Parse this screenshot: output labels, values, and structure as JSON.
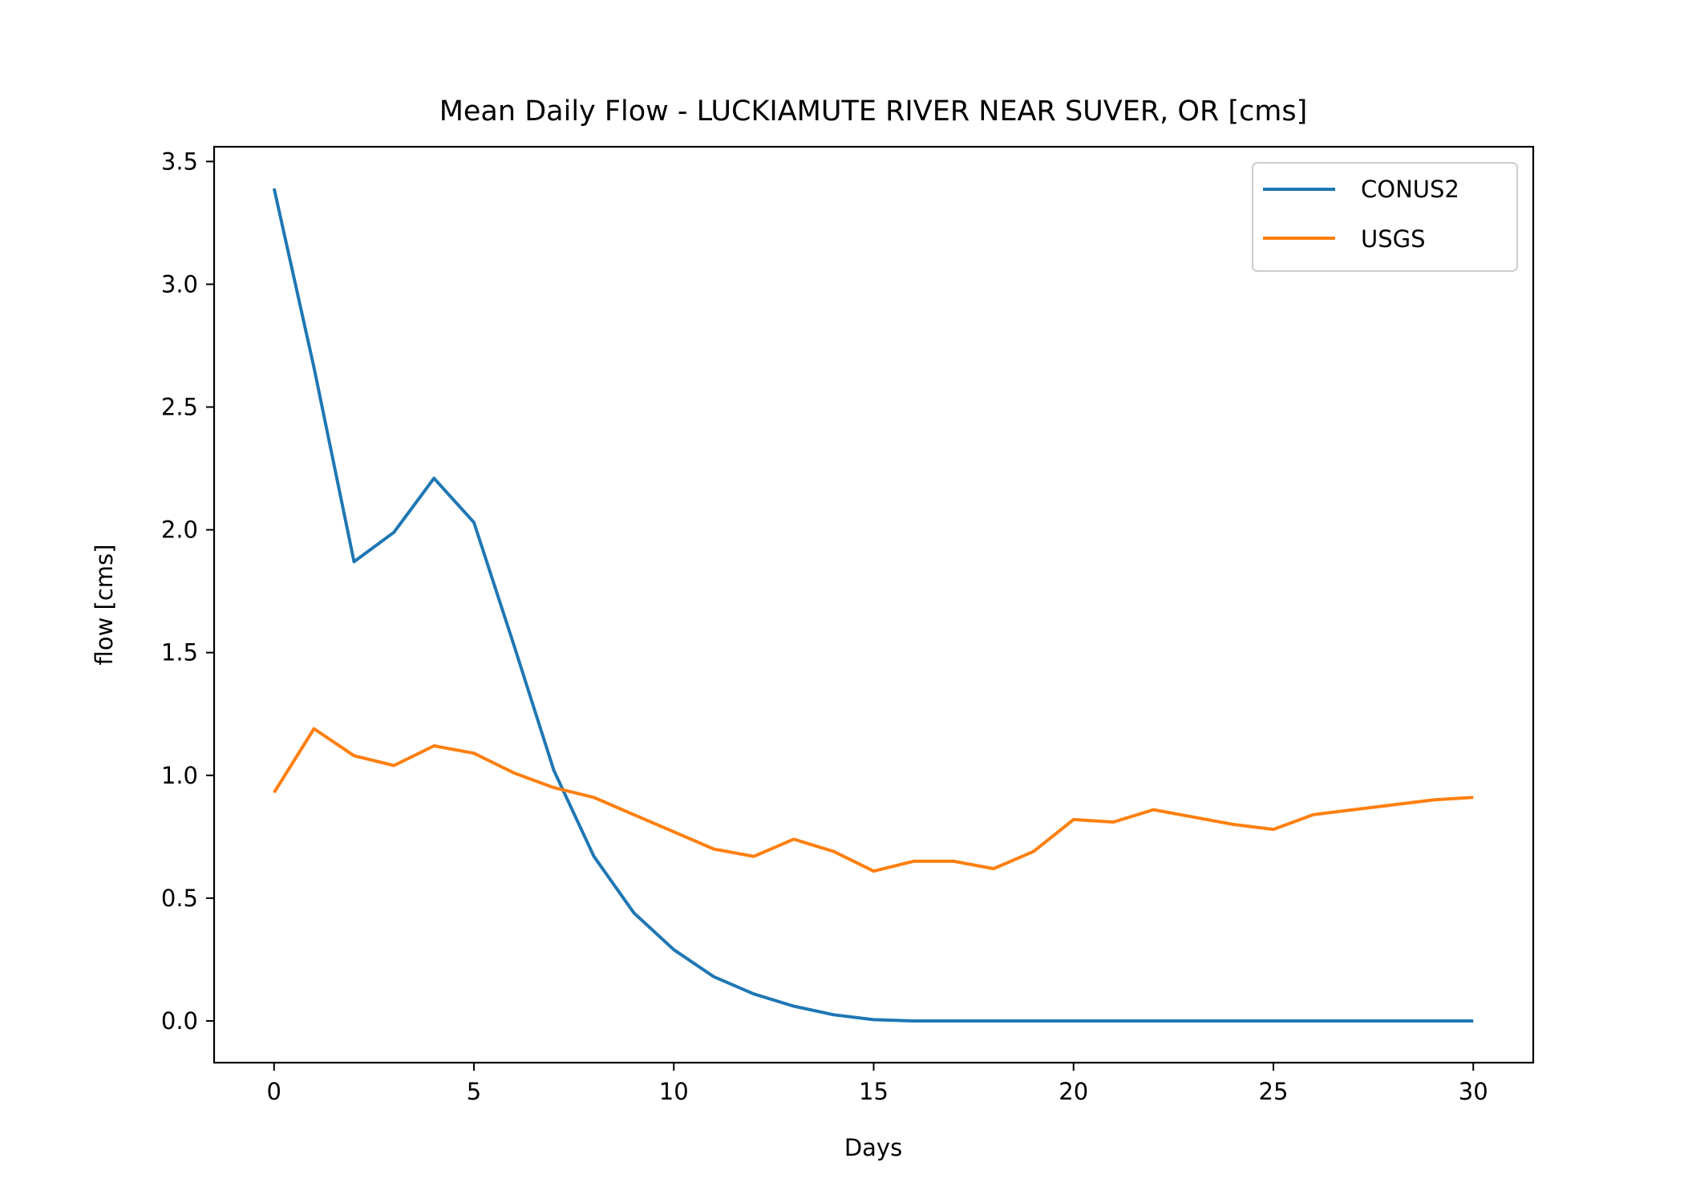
{
  "chart_data": {
    "type": "line",
    "title": "Mean Daily Flow - LUCKIAMUTE RIVER NEAR SUVER, OR [cms]",
    "xlabel": "Days",
    "ylabel": "flow [cms]",
    "xlim": [
      -1.5,
      31.5
    ],
    "ylim": [
      -0.17,
      3.56
    ],
    "xticks": [
      0,
      5,
      10,
      15,
      20,
      25,
      30
    ],
    "yticks": [
      0.0,
      0.5,
      1.0,
      1.5,
      2.0,
      2.5,
      3.0,
      3.5
    ],
    "ytick_labels": [
      "0.0",
      "0.5",
      "1.0",
      "1.5",
      "2.0",
      "2.5",
      "3.0",
      "3.5"
    ],
    "grid": false,
    "legend_position": "top-right",
    "series": [
      {
        "name": "CONUS2",
        "color": "#1f77b4",
        "x": [
          0,
          1,
          2,
          3,
          4,
          5,
          6,
          7,
          8,
          9,
          10,
          11,
          12,
          13,
          14,
          15,
          16,
          17,
          18,
          19,
          20,
          21,
          22,
          23,
          24,
          25,
          26,
          27,
          28,
          29,
          30
        ],
        "y": [
          3.39,
          2.66,
          1.87,
          1.99,
          2.21,
          2.03,
          1.53,
          1.02,
          0.67,
          0.44,
          0.29,
          0.18,
          0.11,
          0.06,
          0.025,
          0.005,
          0.0,
          0.0,
          0.0,
          0.0,
          0.0,
          0.0,
          0.0,
          0.0,
          0.0,
          0.0,
          0.0,
          0.0,
          0.0,
          0.0,
          0.0
        ]
      },
      {
        "name": "USGS",
        "color": "#ff7f0e",
        "x": [
          0,
          1,
          2,
          3,
          4,
          5,
          6,
          7,
          8,
          9,
          10,
          11,
          12,
          13,
          14,
          15,
          16,
          17,
          18,
          19,
          20,
          21,
          22,
          23,
          24,
          25,
          26,
          27,
          28,
          29,
          30
        ],
        "y": [
          0.93,
          1.19,
          1.08,
          1.04,
          1.12,
          1.09,
          1.01,
          0.95,
          0.91,
          0.84,
          0.77,
          0.7,
          0.67,
          0.74,
          0.69,
          0.61,
          0.65,
          0.65,
          0.62,
          0.69,
          0.82,
          0.81,
          0.86,
          0.83,
          0.8,
          0.78,
          0.84,
          0.86,
          0.88,
          0.9,
          0.91
        ]
      }
    ]
  }
}
